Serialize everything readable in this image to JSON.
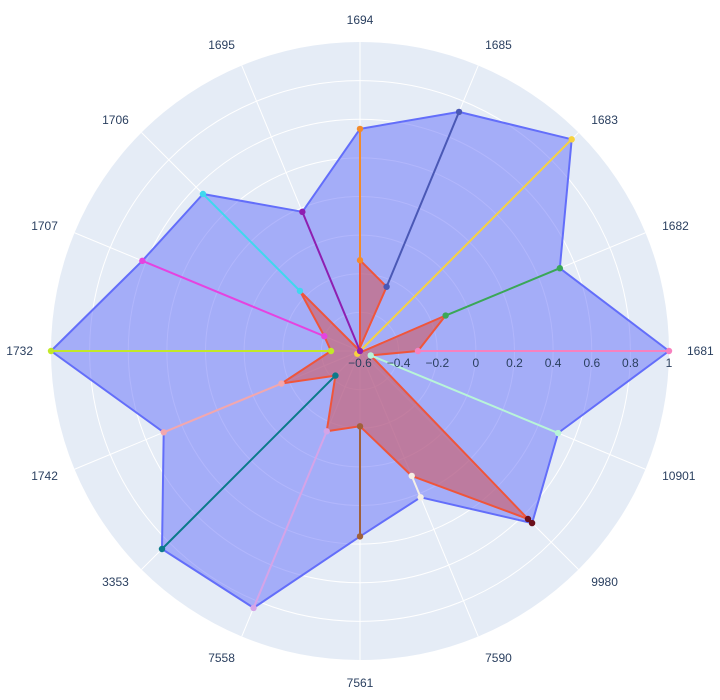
{
  "chart_data": {
    "type": "polar-radar",
    "title": "",
    "theta_categories": [
      "1681",
      "1682",
      "1683",
      "1685",
      "1694",
      "1695",
      "1706",
      "1707",
      "1732",
      "1742",
      "3353",
      "7558",
      "7561",
      "7590",
      "9980",
      "10901"
    ],
    "radial_ticks": [
      "−0.6",
      "−0.4",
      "−0.2",
      "0",
      "0.2",
      "0.4",
      "0.6",
      "0.8",
      "1"
    ],
    "radial_range": [
      -0.6,
      1
    ],
    "grid": true,
    "legend": "none",
    "polygons": [
      {
        "fill": "rgba(99,110,250,0.5)",
        "stroke": "#636efa",
        "values": [
          1.0,
          0.52,
          0.95,
          0.74,
          0.55,
          0.18,
          0.55,
          0.62,
          1.0,
          0.5,
          0.85,
          0.84,
          0.36,
          0.22,
          0.66,
          0.51
        ]
      },
      {
        "fill": "rgba(206,90,100,0.6)",
        "stroke": "#ef553b",
        "values": [
          -0.3,
          -0.12,
          -0.62,
          -0.24,
          -0.13,
          -0.6,
          -0.16,
          -0.4,
          -0.45,
          -0.16,
          -0.42,
          -0.15,
          -0.21,
          0.1,
          0.63,
          -0.54
        ]
      }
    ],
    "spokes": [
      {
        "theta": "1681",
        "color": "#f781bf",
        "from": -0.3,
        "to": 1.0
      },
      {
        "theta": "1682",
        "color": "#3aa757",
        "from": -0.12,
        "to": 0.52
      },
      {
        "theta": "1683",
        "color": "#f7d23e",
        "from": -0.62,
        "to": 0.95
      },
      {
        "theta": "1685",
        "color": "#4a58b5",
        "from": -0.24,
        "to": 0.74
      },
      {
        "theta": "1694",
        "color": "#f28b2c",
        "from": -0.13,
        "to": 0.55
      },
      {
        "theta": "1695",
        "color": "#8e1fb0",
        "from": -0.6,
        "to": 0.18
      },
      {
        "theta": "1706",
        "color": "#3fd8ee",
        "from": -0.16,
        "to": 0.55
      },
      {
        "theta": "1707",
        "color": "#e543e0",
        "from": -0.4,
        "to": 0.62
      },
      {
        "theta": "1732",
        "color": "#c2e829",
        "from": -0.45,
        "to": 1.0
      },
      {
        "theta": "1742",
        "color": "#f2a7ae",
        "from": -0.16,
        "to": 0.5
      },
      {
        "theta": "3353",
        "color": "#0b7a8a",
        "from": -0.42,
        "to": 0.85
      },
      {
        "theta": "7558",
        "color": "#d5a4e8",
        "from": -0.15,
        "to": 0.84
      },
      {
        "theta": "7561",
        "color": "#a0603a",
        "from": -0.21,
        "to": 0.36
      },
      {
        "theta": "7590",
        "color": "#f5f0e6",
        "from": 0.1,
        "to": 0.22
      },
      {
        "theta": "9980",
        "color": "#6b0f1a",
        "from": 0.63,
        "to": 0.66
      },
      {
        "theta": "10901",
        "color": "#b8f5d8",
        "from": -0.54,
        "to": 0.51
      }
    ]
  }
}
